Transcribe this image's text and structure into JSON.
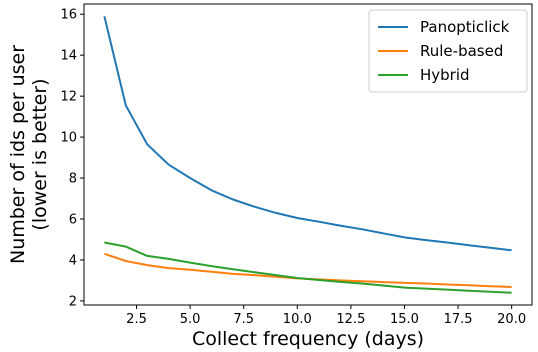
{
  "chart_data": {
    "type": "line",
    "title": "",
    "xlabel": "Collect frequency (days)",
    "ylabel": [
      "Number of ids per user",
      "(lower is better)"
    ],
    "xlim": [
      0.05,
      20.95
    ],
    "ylim": [
      1.8,
      16.5
    ],
    "xticks": [
      2.5,
      5.0,
      7.5,
      10.0,
      12.5,
      15.0,
      17.5,
      20.0
    ],
    "xtick_labels": [
      "2.5",
      "5.0",
      "7.5",
      "10.0",
      "12.5",
      "15.0",
      "17.5",
      "20.0"
    ],
    "yticks": [
      2,
      4,
      6,
      8,
      10,
      12,
      14,
      16
    ],
    "ytick_labels": [
      "2",
      "4",
      "6",
      "8",
      "10",
      "12",
      "14",
      "16"
    ],
    "grid": false,
    "legend_position": "top-right",
    "x": [
      1,
      2,
      3,
      4,
      5,
      6,
      7,
      8,
      9,
      10,
      11,
      12,
      13,
      14,
      15,
      16,
      17,
      18,
      19,
      20
    ],
    "series": [
      {
        "name": "Panopticlick",
        "color": "#1f77b4",
        "values": [
          15.9,
          11.55,
          9.65,
          8.65,
          8.0,
          7.4,
          6.95,
          6.6,
          6.3,
          6.05,
          5.87,
          5.68,
          5.5,
          5.3,
          5.1,
          4.97,
          4.85,
          4.72,
          4.6,
          4.47
        ]
      },
      {
        "name": "Rule-based",
        "color": "#ff7f0e",
        "values": [
          4.3,
          3.95,
          3.75,
          3.6,
          3.52,
          3.42,
          3.32,
          3.26,
          3.18,
          3.1,
          3.05,
          3.0,
          2.96,
          2.92,
          2.88,
          2.85,
          2.8,
          2.76,
          2.72,
          2.68
        ]
      },
      {
        "name": "Hybrid",
        "color": "#2ca02c",
        "values": [
          4.85,
          4.65,
          4.2,
          4.05,
          3.87,
          3.7,
          3.55,
          3.4,
          3.26,
          3.12,
          3.02,
          2.93,
          2.85,
          2.75,
          2.65,
          2.6,
          2.55,
          2.5,
          2.45,
          2.4
        ]
      }
    ]
  }
}
